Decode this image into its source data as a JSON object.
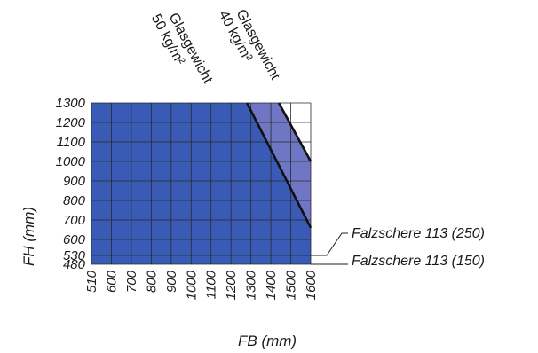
{
  "chart_data": {
    "type": "area",
    "xlabel": "FB (mm)",
    "ylabel": "FH (mm)",
    "x_ticks": [
      510,
      600,
      700,
      800,
      900,
      1000,
      1100,
      1200,
      1300,
      1400,
      1500,
      1600
    ],
    "y_ticks": [
      480,
      530,
      600,
      700,
      800,
      900,
      1000,
      1100,
      1200,
      1300
    ],
    "xlim": [
      510,
      1600
    ],
    "ylim": [
      480,
      1300
    ],
    "grid": true,
    "series": [
      {
        "name": "Glasgewicht 50 kg/m²",
        "color": "#3a5bb5",
        "boundary": [
          [
            1280,
            1300
          ],
          [
            1600,
            660
          ]
        ]
      },
      {
        "name": "Glasgewicht 40 kg/m²",
        "color": "#6f76c3",
        "boundary": [
          [
            1440,
            1300
          ],
          [
            1600,
            1000
          ]
        ]
      }
    ],
    "annotations": [
      {
        "label": "Falzschere 113 (250)",
        "y": 530
      },
      {
        "label": "Falzschere 113 (150)",
        "y": 480
      }
    ]
  }
}
